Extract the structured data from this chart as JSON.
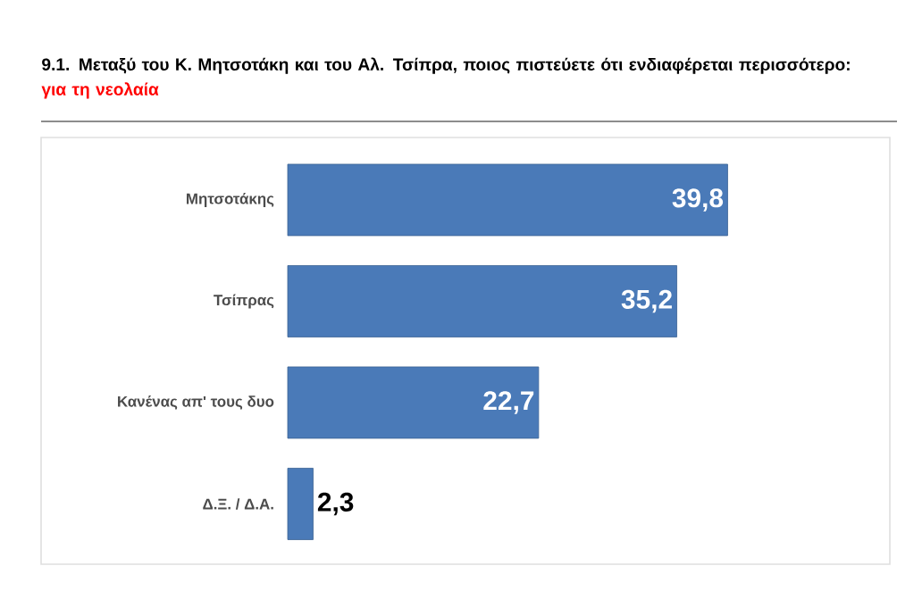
{
  "chart_data": {
    "type": "bar",
    "orientation": "horizontal",
    "title": "9.1. Μεταξύ του Κ. Μητσοτάκη και του Αλ. Τσίπρα, ποιος πιστεύετε ότι ενδιαφέρεται περισσότερο:",
    "subtitle": "για τη νεολαία",
    "categories": [
      "Μητσοτάκης",
      "Τσίπρας",
      "Κανένας απ' τους δυο",
      "Δ.Ξ. / Δ.Α."
    ],
    "values": [
      39.8,
      35.2,
      22.7,
      2.3
    ],
    "value_labels": [
      "39,8",
      "35,2",
      "22,7",
      "2,3"
    ],
    "color": "#4a7ab8"
  }
}
